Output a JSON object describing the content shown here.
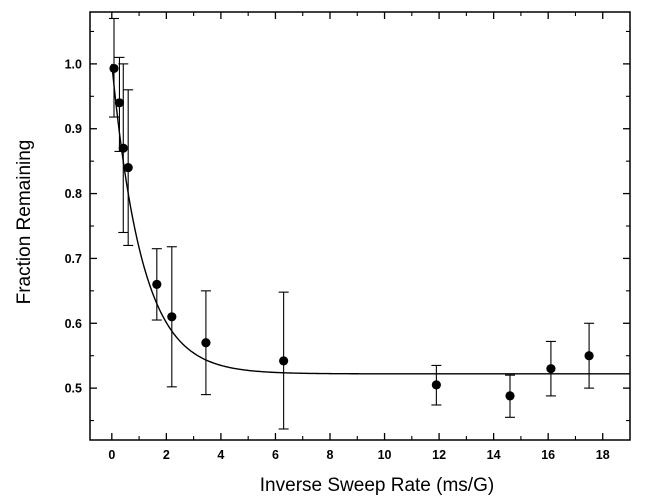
{
  "chart_data": {
    "type": "scatter",
    "title": "",
    "xlabel": "Inverse Sweep Rate (ms/G)",
    "ylabel": "Fraction Remaining",
    "xlim": [
      -0.8,
      19
    ],
    "ylim": [
      0.42,
      1.08
    ],
    "x_ticks": [
      0,
      2,
      4,
      6,
      8,
      10,
      12,
      14,
      16,
      18
    ],
    "x_tick_labels": [
      "0",
      "2",
      "4",
      "6",
      "8",
      "10",
      "12",
      "14",
      "16",
      "18"
    ],
    "y_ticks": [
      0.5,
      0.6,
      0.7,
      0.8,
      0.9,
      1.0
    ],
    "y_tick_labels": [
      "0.5",
      "0.6",
      "0.7",
      "0.8",
      "0.9",
      "1.0"
    ],
    "grid": false,
    "legend": "none",
    "series": [
      {
        "x": [
          0.08,
          0.28,
          0.42,
          0.6,
          1.65,
          2.2,
          3.45,
          6.3,
          11.9,
          14.6,
          16.1,
          17.5
        ],
        "y": [
          0.993,
          0.94,
          0.87,
          0.84,
          0.66,
          0.61,
          0.57,
          0.542,
          0.505,
          0.488,
          0.53,
          0.55
        ],
        "error_upper": [
          1.07,
          1.01,
          1.0,
          0.96,
          0.715,
          0.718,
          0.65,
          0.648,
          0.535,
          0.52,
          0.572,
          0.6
        ],
        "error_lower": [
          0.918,
          0.865,
          0.74,
          0.72,
          0.605,
          0.502,
          0.49,
          0.437,
          0.474,
          0.455,
          0.488,
          0.5
        ]
      }
    ],
    "fit_curve": {
      "type": "exponential_decay",
      "offset": 0.522,
      "amplitude": 0.478,
      "decay_constant": 0.9
    },
    "colors": {
      "points": "#000000",
      "line": "#000000",
      "axes": "#000000"
    }
  }
}
